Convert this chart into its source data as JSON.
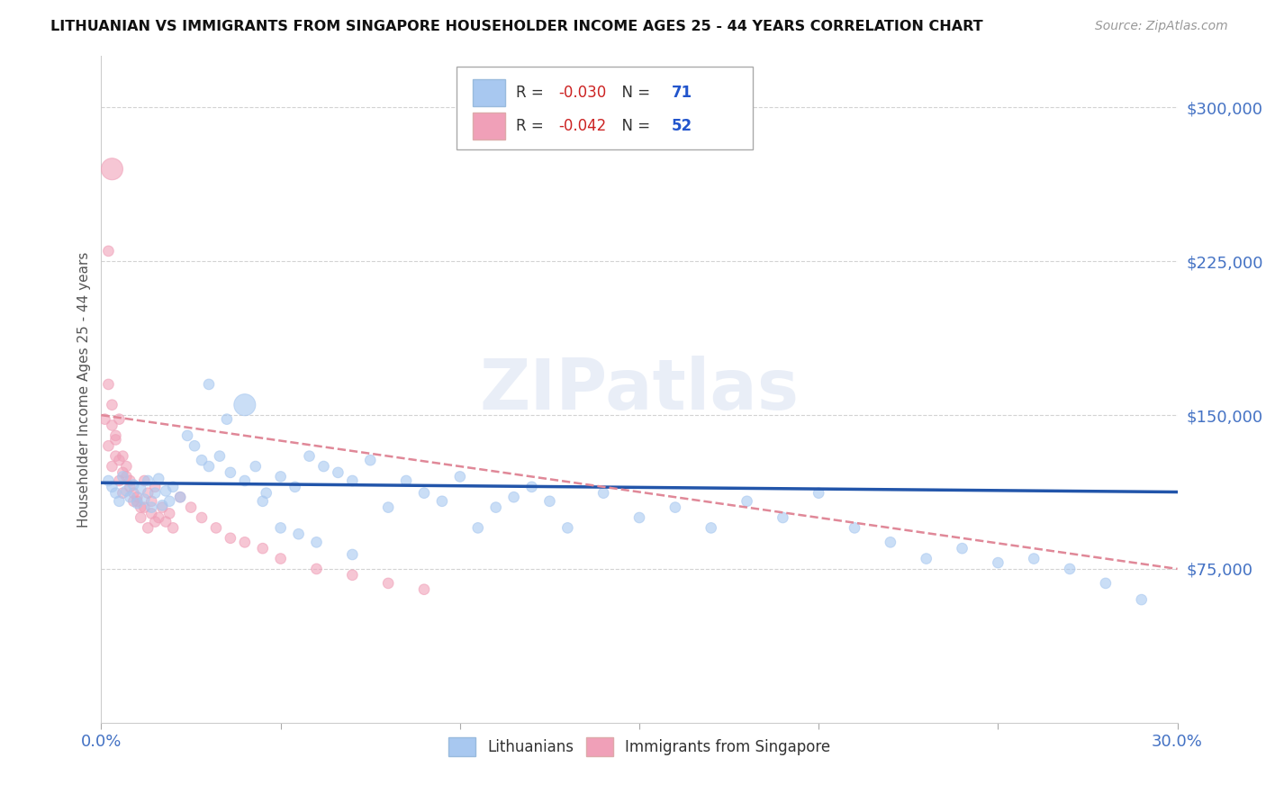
{
  "title": "LITHUANIAN VS IMMIGRANTS FROM SINGAPORE HOUSEHOLDER INCOME AGES 25 - 44 YEARS CORRELATION CHART",
  "source": "Source: ZipAtlas.com",
  "ylabel": "Householder Income Ages 25 - 44 years",
  "xlim": [
    0,
    0.3
  ],
  "ylim": [
    0,
    325000
  ],
  "yticks": [
    75000,
    150000,
    225000,
    300000
  ],
  "yticklabels": [
    "$75,000",
    "$150,000",
    "$225,000",
    "$300,000"
  ],
  "blue_color": "#A8C8F0",
  "pink_color": "#F0A0B8",
  "blue_line_color": "#2255AA",
  "pink_line_color": "#E08898",
  "R_blue": -0.03,
  "N_blue": 71,
  "R_pink": -0.042,
  "N_pink": 52,
  "watermark": "ZIPatlas",
  "legend_label_blue": "Lithuanians",
  "legend_label_pink": "Immigrants from Singapore",
  "blue_x": [
    0.002,
    0.003,
    0.004,
    0.005,
    0.006,
    0.007,
    0.008,
    0.009,
    0.01,
    0.011,
    0.012,
    0.013,
    0.014,
    0.015,
    0.016,
    0.017,
    0.018,
    0.019,
    0.02,
    0.022,
    0.024,
    0.026,
    0.028,
    0.03,
    0.033,
    0.036,
    0.04,
    0.043,
    0.046,
    0.05,
    0.054,
    0.058,
    0.062,
    0.066,
    0.07,
    0.075,
    0.08,
    0.085,
    0.09,
    0.095,
    0.1,
    0.105,
    0.11,
    0.115,
    0.12,
    0.125,
    0.13,
    0.14,
    0.15,
    0.16,
    0.17,
    0.18,
    0.19,
    0.2,
    0.21,
    0.22,
    0.23,
    0.24,
    0.25,
    0.26,
    0.27,
    0.28,
    0.29,
    0.05,
    0.06,
    0.07,
    0.03,
    0.035,
    0.04,
    0.045,
    0.055
  ],
  "blue_y": [
    118000,
    115000,
    112000,
    108000,
    120000,
    113000,
    110000,
    116000,
    107000,
    114000,
    109000,
    118000,
    105000,
    112000,
    119000,
    106000,
    113000,
    108000,
    115000,
    110000,
    140000,
    135000,
    128000,
    125000,
    130000,
    122000,
    118000,
    125000,
    112000,
    120000,
    115000,
    130000,
    125000,
    122000,
    118000,
    128000,
    105000,
    118000,
    112000,
    108000,
    120000,
    95000,
    105000,
    110000,
    115000,
    108000,
    95000,
    112000,
    100000,
    105000,
    95000,
    108000,
    100000,
    112000,
    95000,
    88000,
    80000,
    85000,
    78000,
    80000,
    75000,
    68000,
    60000,
    95000,
    88000,
    82000,
    165000,
    148000,
    155000,
    108000,
    92000
  ],
  "blue_sizes": [
    70,
    70,
    70,
    70,
    70,
    70,
    70,
    70,
    70,
    70,
    70,
    70,
    70,
    70,
    70,
    70,
    70,
    70,
    70,
    70,
    70,
    70,
    70,
    70,
    70,
    70,
    70,
    70,
    70,
    70,
    70,
    70,
    70,
    70,
    70,
    70,
    70,
    70,
    70,
    70,
    70,
    70,
    70,
    70,
    70,
    70,
    70,
    70,
    70,
    70,
    70,
    70,
    70,
    70,
    70,
    70,
    70,
    70,
    70,
    70,
    70,
    70,
    70,
    70,
    70,
    70,
    70,
    70,
    300,
    70,
    70
  ],
  "pink_x": [
    0.001,
    0.002,
    0.003,
    0.004,
    0.005,
    0.006,
    0.007,
    0.008,
    0.009,
    0.01,
    0.011,
    0.012,
    0.013,
    0.014,
    0.015,
    0.016,
    0.017,
    0.018,
    0.019,
    0.02,
    0.003,
    0.004,
    0.005,
    0.006,
    0.007,
    0.008,
    0.009,
    0.01,
    0.011,
    0.012,
    0.013,
    0.014,
    0.015,
    0.002,
    0.003,
    0.004,
    0.005,
    0.006,
    0.022,
    0.025,
    0.028,
    0.032,
    0.036,
    0.04,
    0.045,
    0.05,
    0.06,
    0.07,
    0.08,
    0.09,
    0.003,
    0.002
  ],
  "pink_y": [
    148000,
    135000,
    125000,
    130000,
    118000,
    112000,
    120000,
    115000,
    108000,
    110000,
    105000,
    118000,
    112000,
    108000,
    115000,
    100000,
    105000,
    98000,
    102000,
    95000,
    155000,
    140000,
    148000,
    130000,
    125000,
    118000,
    112000,
    108000,
    100000,
    105000,
    95000,
    102000,
    98000,
    165000,
    145000,
    138000,
    128000,
    122000,
    110000,
    105000,
    100000,
    95000,
    90000,
    88000,
    85000,
    80000,
    75000,
    72000,
    68000,
    65000,
    270000,
    230000
  ],
  "pink_sizes": [
    70,
    70,
    70,
    70,
    70,
    70,
    70,
    70,
    70,
    70,
    70,
    70,
    70,
    70,
    70,
    70,
    70,
    70,
    70,
    70,
    70,
    70,
    70,
    70,
    70,
    70,
    70,
    70,
    70,
    70,
    70,
    70,
    70,
    70,
    70,
    70,
    70,
    70,
    70,
    70,
    70,
    70,
    70,
    70,
    70,
    70,
    70,
    70,
    70,
    70,
    300,
    70
  ]
}
